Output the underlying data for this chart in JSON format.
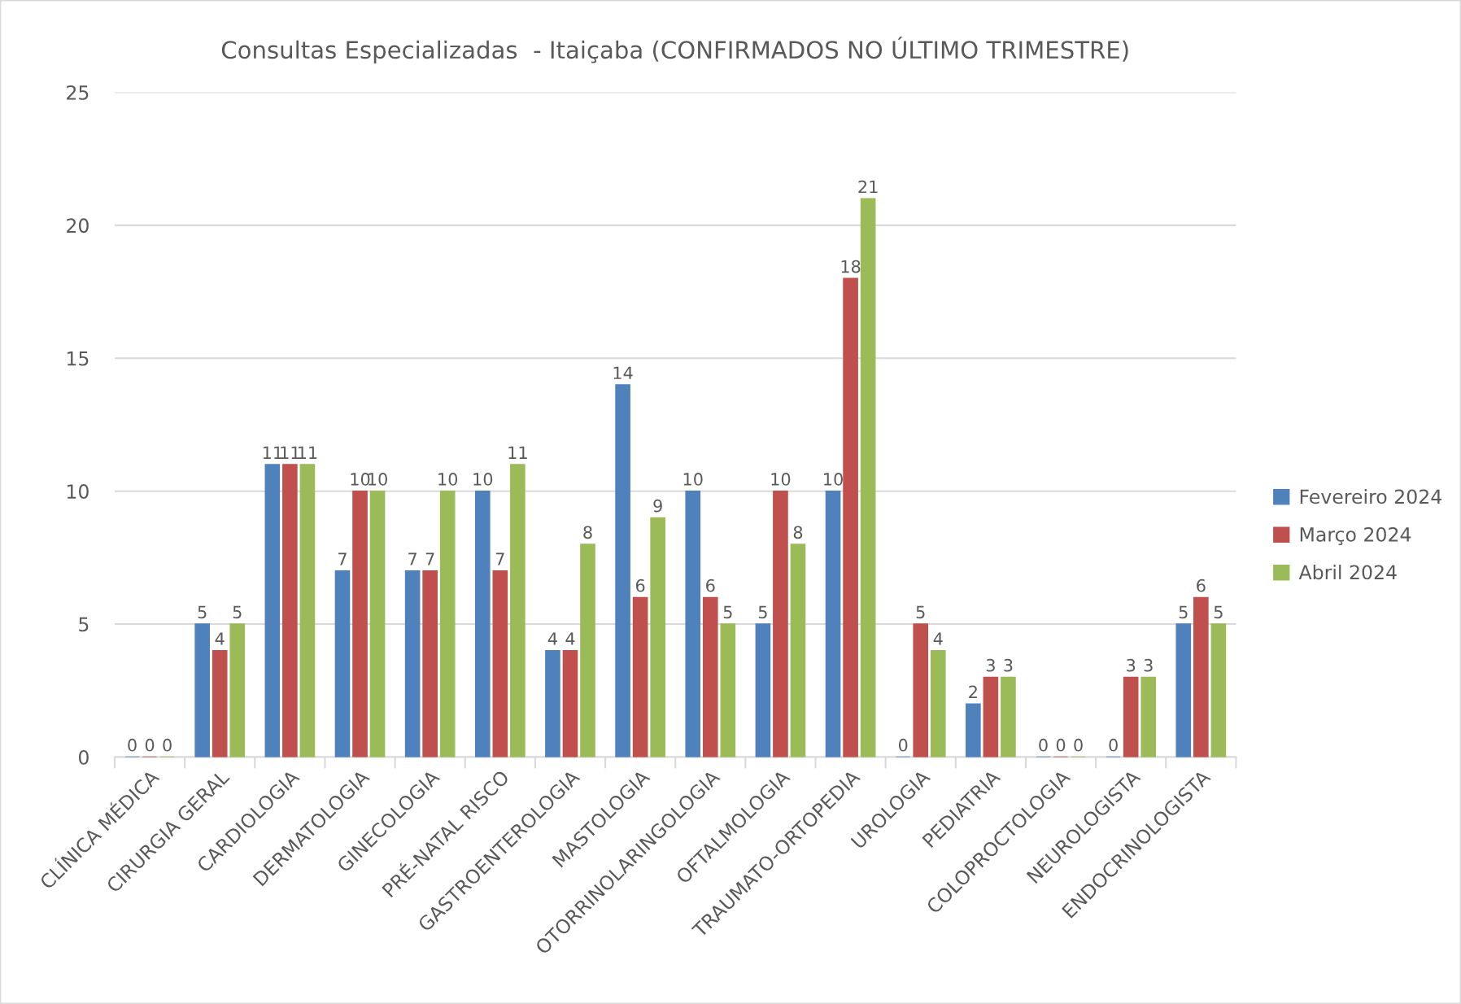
{
  "chart_data": {
    "type": "bar",
    "title": "Consultas Especializadas  - Itaiçaba (CONFIRMADOS NO ÚLTIMO TRIMESTRE)",
    "categories": [
      "CLÍNICA MÉDICA",
      "CIRURGIA GERAL",
      "CARDIOLOGIA",
      "DERMATOLOGIA",
      "GINECOLOGIA",
      "PRÉ-NATAL RISCO",
      "GASTROENTEROLOGIA",
      "MASTOLOGIA",
      "OTORRINOLARINGOLOGIA",
      "OFTALMOLOGIA",
      "TRAUMATO-ORTOPEDIA",
      "UROLOGIA",
      "PEDIATRIA",
      "COLOPROCTOLOGIA",
      "NEUROLOGISTA",
      "ENDOCRINOLOGISTA"
    ],
    "series": [
      {
        "name": "Fevereiro 2024",
        "color": "#4f81bd",
        "values": [
          0,
          5,
          11,
          7,
          7,
          10,
          4,
          14,
          10,
          5,
          10,
          0,
          2,
          0,
          0,
          5
        ]
      },
      {
        "name": "Março 2024",
        "color": "#c0504d",
        "values": [
          0,
          4,
          11,
          10,
          7,
          7,
          4,
          6,
          6,
          10,
          18,
          5,
          3,
          0,
          3,
          6
        ]
      },
      {
        "name": "Abril 2024",
        "color": "#9bbb59",
        "values": [
          0,
          5,
          11,
          10,
          10,
          11,
          8,
          9,
          5,
          8,
          21,
          4,
          3,
          0,
          3,
          5
        ]
      }
    ],
    "ylim": [
      0,
      25
    ],
    "yticks": [
      0,
      5,
      10,
      15,
      20,
      25
    ],
    "grid": "y",
    "legend": "right",
    "data_labels": true
  }
}
